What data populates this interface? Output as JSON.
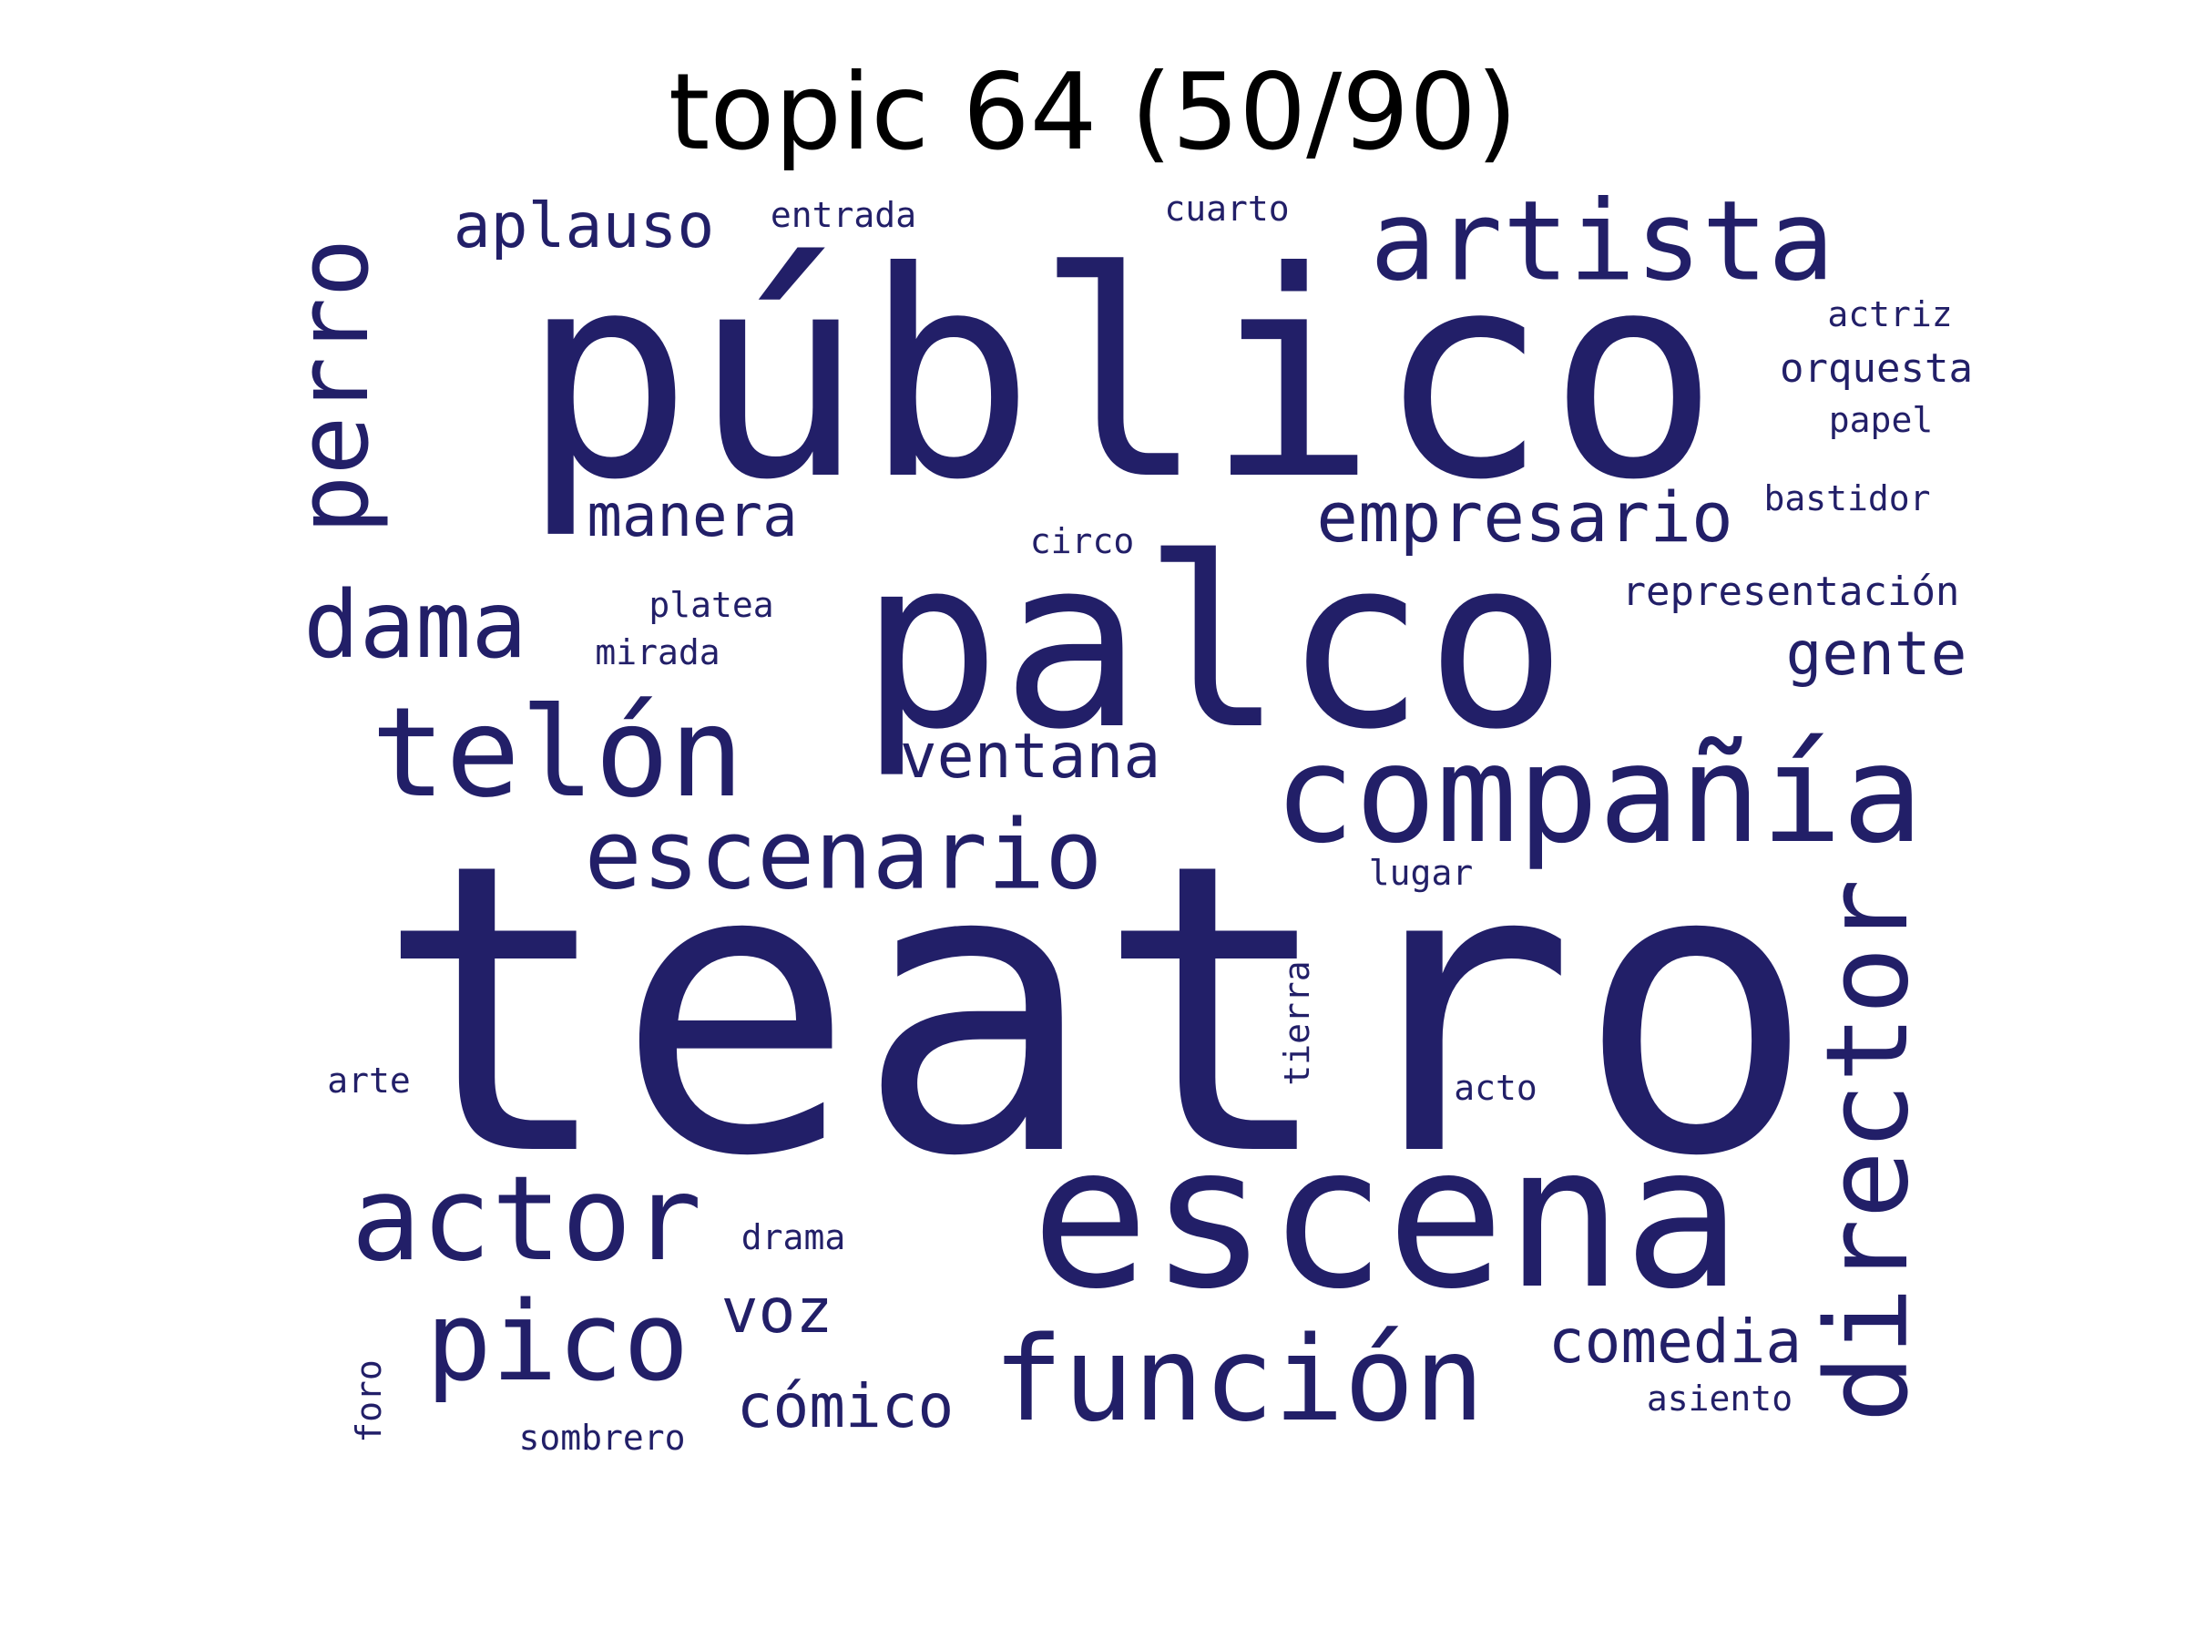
{
  "title": "topic 64 (50/90)",
  "colors": {
    "word": "#221f68",
    "title": "#000000",
    "background": "#ffffff"
  },
  "words": [
    {
      "text": "teatro",
      "rotated": false
    },
    {
      "text": "público",
      "rotated": false
    },
    {
      "text": "palco",
      "rotated": false
    },
    {
      "text": "escena",
      "rotated": false
    },
    {
      "text": "compañía",
      "rotated": false
    },
    {
      "text": "artista",
      "rotated": false
    },
    {
      "text": "telón",
      "rotated": false
    },
    {
      "text": "actor",
      "rotated": false
    },
    {
      "text": "director",
      "rotated": true
    },
    {
      "text": "función",
      "rotated": false
    },
    {
      "text": "perro",
      "rotated": true
    },
    {
      "text": "escenario",
      "rotated": false
    },
    {
      "text": "pico",
      "rotated": false
    },
    {
      "text": "dama",
      "rotated": false
    },
    {
      "text": "empresario",
      "rotated": false
    },
    {
      "text": "aplauso",
      "rotated": false
    },
    {
      "text": "ventana",
      "rotated": false
    },
    {
      "text": "gente",
      "rotated": false
    },
    {
      "text": "comedia",
      "rotated": false
    },
    {
      "text": "manera",
      "rotated": false
    },
    {
      "text": "cómico",
      "rotated": false
    },
    {
      "text": "voz",
      "rotated": false
    },
    {
      "text": "representación",
      "rotated": false
    },
    {
      "text": "orquesta",
      "rotated": false
    },
    {
      "text": "entrada",
      "rotated": false
    },
    {
      "text": "cuarto",
      "rotated": false
    },
    {
      "text": "actriz",
      "rotated": false
    },
    {
      "text": "papel",
      "rotated": false
    },
    {
      "text": "bastidor",
      "rotated": false
    },
    {
      "text": "circo",
      "rotated": false
    },
    {
      "text": "platea",
      "rotated": false
    },
    {
      "text": "mirada",
      "rotated": false
    },
    {
      "text": "lugar",
      "rotated": false
    },
    {
      "text": "tierra",
      "rotated": true
    },
    {
      "text": "arte",
      "rotated": false
    },
    {
      "text": "acto",
      "rotated": false
    },
    {
      "text": "drama",
      "rotated": false
    },
    {
      "text": "asiento",
      "rotated": false
    },
    {
      "text": "foro",
      "rotated": true
    },
    {
      "text": "sombrero",
      "rotated": false
    }
  ]
}
